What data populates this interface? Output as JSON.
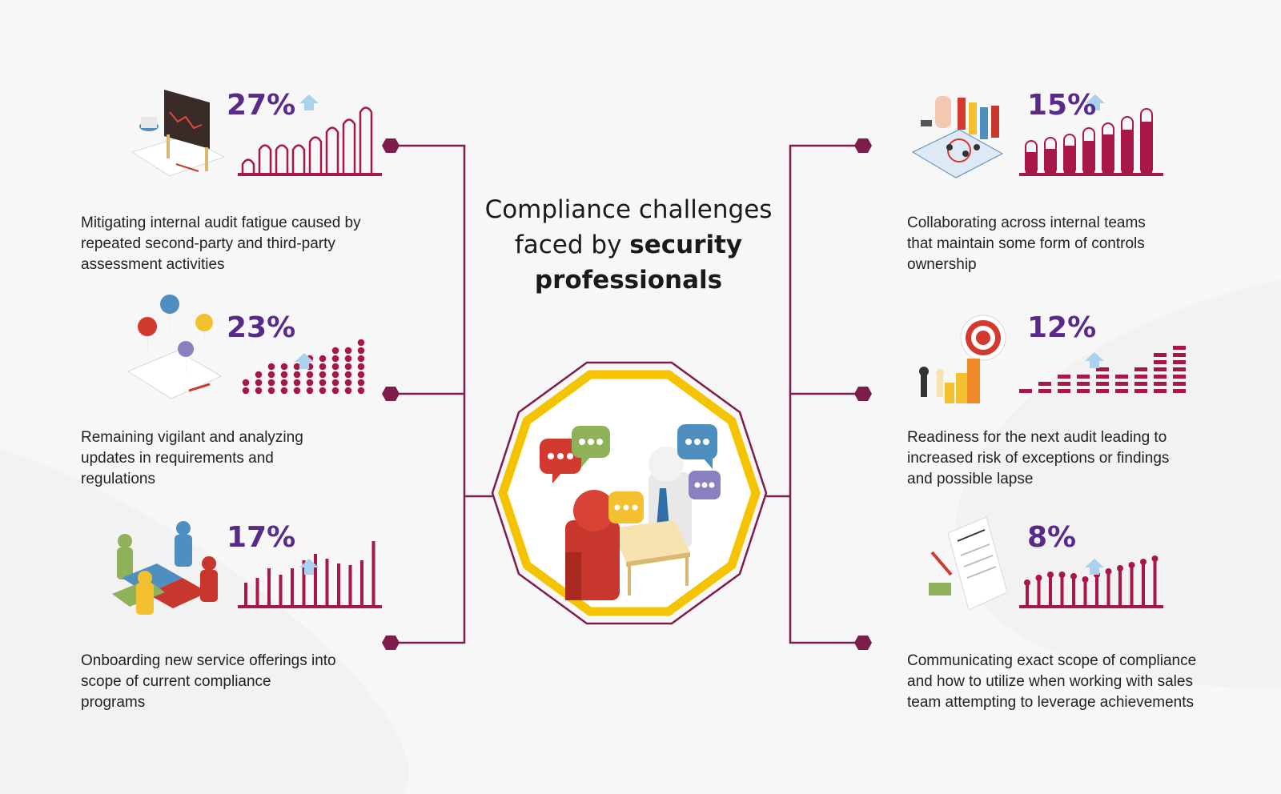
{
  "title": {
    "line1": "Compliance challenges",
    "line2_plain": "faced by ",
    "line2_bold": "security",
    "line3_bold": "professionals"
  },
  "colors": {
    "accent": "#a8174a",
    "percent": "#5a2a8a",
    "connector": "#7d1d4d",
    "ring": "#f5c400",
    "arrow": "#a9d2ef"
  },
  "items": [
    {
      "side": "left",
      "percent": "27%",
      "value": 27,
      "icon": "presentation-board-icon",
      "text": [
        "Mitigating internal audit fatigue caused by",
        "repeated second-party and third-party",
        "assessment activities"
      ],
      "bar_style": "outline-arch"
    },
    {
      "side": "left",
      "percent": "23%",
      "value": 23,
      "icon": "location-pins-map-icon",
      "text": [
        "Remaining vigilant and analyzing",
        "updates in requirements and",
        "regulations"
      ],
      "bar_style": "dots"
    },
    {
      "side": "left",
      "percent": "17%",
      "value": 17,
      "icon": "team-puzzle-icon",
      "text": [
        "Onboarding new service offerings into",
        "scope of current compliance",
        "programs"
      ],
      "bar_style": "thin-bars"
    },
    {
      "side": "right",
      "percent": "15%",
      "value": 15,
      "icon": "strategy-board-icon",
      "text": [
        "Collaborating across internal teams",
        "that maintain some form of controls",
        "ownership"
      ],
      "bar_style": "rounded-fill"
    },
    {
      "side": "right",
      "percent": "12%",
      "value": 12,
      "icon": "target-chess-icon",
      "text": [
        "Readiness for the next audit leading to",
        "increased risk of exceptions or findings",
        "and possible lapse"
      ],
      "bar_style": "stacked-segments"
    },
    {
      "side": "right",
      "percent": "8%",
      "value": 8,
      "icon": "contract-document-icon",
      "text": [
        "Communicating exact scope of compliance",
        "and how to utilize when working with sales",
        "team attempting to leverage achievements"
      ],
      "bar_style": "lollipop"
    }
  ],
  "center_icon": "meeting-chat-icon"
}
